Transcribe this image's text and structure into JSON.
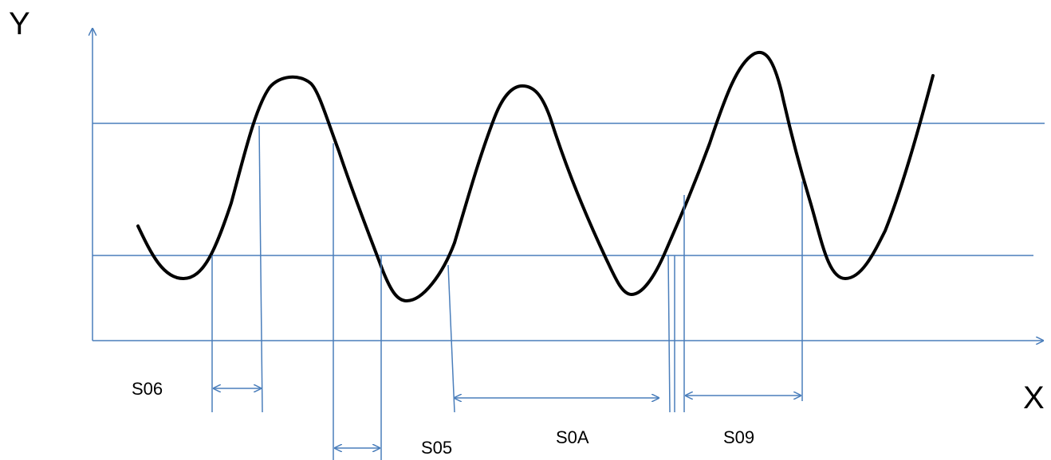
{
  "axes": {
    "y_label": "Y",
    "x_label": "X"
  },
  "segments": [
    {
      "id": "s06",
      "label": "S06"
    },
    {
      "id": "s05",
      "label": "S05"
    },
    {
      "id": "s0a",
      "label": "S0A"
    },
    {
      "id": "s09",
      "label": "S09"
    }
  ],
  "colors": {
    "line": "#4a7ebb",
    "curve": "#000000",
    "text": "#000000"
  }
}
